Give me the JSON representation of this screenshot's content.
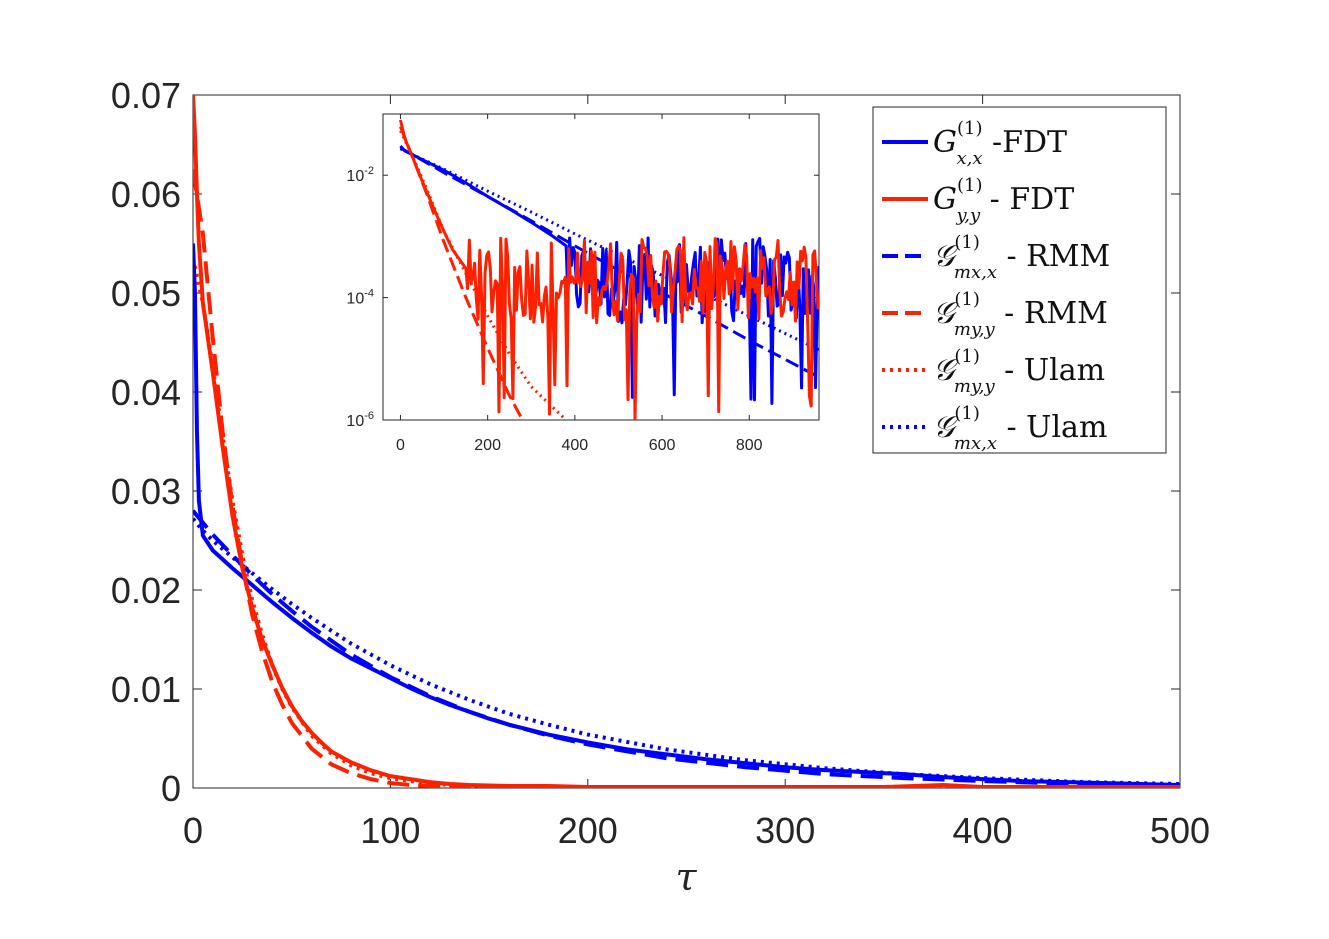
{
  "chart_data": [
    {
      "type": "line",
      "panel": "main",
      "xlabel": "τ",
      "ylabel": "",
      "xlim": [
        0,
        500
      ],
      "ylim": [
        0,
        0.07
      ],
      "x_ticks": [
        0,
        100,
        200,
        300,
        400,
        500
      ],
      "x_tick_labels": [
        "0",
        "100",
        "200",
        "300",
        "400",
        "500"
      ],
      "y_ticks": [
        0,
        0.01,
        0.02,
        0.03,
        0.04,
        0.05,
        0.06,
        0.07
      ],
      "y_tick_labels": [
        "0",
        "0.01",
        "0.02",
        "0.03",
        "0.04",
        "0.05",
        "0.06",
        "0.07"
      ],
      "series": [
        {
          "key": "gxx_fdt",
          "name": "G_{x,x}^{(1)} -FDT",
          "color": "#0000ff",
          "style": "solid",
          "x": [
            0,
            1,
            2,
            3,
            5,
            10,
            20,
            30,
            40,
            50,
            60,
            70,
            80,
            90,
            100,
            110,
            120,
            130,
            140,
            150,
            160,
            170,
            180,
            190,
            200,
            220,
            240,
            260,
            280,
            300,
            320,
            340,
            360,
            380,
            400,
            420,
            440,
            460,
            480,
            500
          ],
          "y": [
            0.055,
            0.05,
            0.036,
            0.029,
            0.0255,
            0.024,
            0.0222,
            0.0205,
            0.0188,
            0.0172,
            0.0157,
            0.0143,
            0.0131,
            0.0121,
            0.0111,
            0.0101,
            0.0092,
            0.0084,
            0.0077,
            0.007,
            0.0064,
            0.0059,
            0.0054,
            0.005,
            0.0046,
            0.0039,
            0.0034,
            0.0029,
            0.0025,
            0.0021,
            0.0018,
            0.0016,
            0.0014,
            0.0011,
            0.0009,
            0.0007,
            0.0006,
            0.0005,
            0.0004,
            0.0003
          ]
        },
        {
          "key": "gyy_fdt",
          "name": "G_{y,y}^{(1)} - FDT",
          "color": "#ff2000",
          "style": "solid",
          "x": [
            0,
            1,
            2,
            3,
            5,
            10,
            15,
            20,
            25,
            30,
            35,
            40,
            45,
            50,
            55,
            60,
            65,
            70,
            80,
            90,
            100,
            110,
            120,
            130,
            140,
            160,
            180,
            200,
            250,
            300,
            350,
            380,
            400,
            450,
            500
          ],
          "y": [
            0.07,
            0.066,
            0.06,
            0.055,
            0.049,
            0.042,
            0.0345,
            0.0275,
            0.0222,
            0.0182,
            0.015,
            0.0125,
            0.0102,
            0.0083,
            0.0068,
            0.0056,
            0.0046,
            0.0037,
            0.0026,
            0.0018,
            0.0012,
            0.0009,
            0.0006,
            0.0004,
            0.0003,
            0.0002,
            0.0002,
            0.0001,
            0.0001,
            0.0001,
            0.0001,
            0.0003,
            0.0001,
            0.0001,
            0.0001
          ]
        },
        {
          "key": "gmxx_rmm",
          "name": "𝒢_{m_x,x}^{(1)} - RMM",
          "color": "#0000ff",
          "style": "dashed",
          "x": [
            0,
            5,
            10,
            20,
            30,
            40,
            50,
            60,
            80,
            100,
            120,
            140,
            160,
            180,
            200,
            240,
            280,
            320,
            360,
            400,
            450,
            500
          ],
          "y": [
            0.028,
            0.0268,
            0.0256,
            0.0235,
            0.0215,
            0.0196,
            0.0179,
            0.0163,
            0.0135,
            0.0112,
            0.0093,
            0.0077,
            0.0064,
            0.0053,
            0.0044,
            0.003,
            0.0021,
            0.0014,
            0.001,
            0.0007,
            0.0004,
            0.0002
          ]
        },
        {
          "key": "gmyy_rmm",
          "name": "𝒢_{m_y,y}^{(1)} - RMM",
          "color": "#ff2000",
          "style": "dashed",
          "x": [
            0,
            5,
            10,
            15,
            20,
            25,
            30,
            35,
            40,
            45,
            50,
            60,
            70,
            80,
            90,
            100,
            110,
            120,
            130,
            150,
            180,
            220,
            260,
            300,
            400,
            500
          ],
          "y": [
            0.0625,
            0.056,
            0.0455,
            0.036,
            0.0285,
            0.0225,
            0.0175,
            0.0138,
            0.0108,
            0.0085,
            0.0066,
            0.004,
            0.0024,
            0.0015,
            0.0009,
            0.0005,
            0.0003,
            0.0002,
            0.0001,
            0.0001,
            0,
            0,
            0,
            0,
            0,
            0
          ]
        },
        {
          "key": "gmyy_ulam",
          "name": "𝒢_{m_y,y}^{(1)} - Ulam",
          "color": "#ff2000",
          "style": "dotted",
          "x": [
            0,
            5,
            10,
            15,
            20,
            25,
            30,
            35,
            40,
            45,
            50,
            60,
            70,
            80,
            90,
            100,
            110,
            120,
            130,
            150,
            180,
            220,
            260,
            300,
            400,
            500
          ],
          "y": [
            0.0535,
            0.049,
            0.0425,
            0.0355,
            0.029,
            0.0235,
            0.019,
            0.0155,
            0.0125,
            0.0101,
            0.0082,
            0.0053,
            0.0035,
            0.0023,
            0.0015,
            0.001,
            0.0007,
            0.0005,
            0.0003,
            0.0002,
            0.0001,
            0,
            0,
            0,
            0,
            0
          ]
        },
        {
          "key": "gmxx_ulam",
          "name": "𝒢_{m_x,x}^{(1)} - Ulam",
          "color": "#0000ff",
          "style": "dotted",
          "x": [
            0,
            5,
            10,
            20,
            30,
            40,
            50,
            60,
            80,
            100,
            120,
            140,
            160,
            180,
            200,
            240,
            280,
            320,
            360,
            400,
            450,
            500
          ],
          "y": [
            0.0272,
            0.026,
            0.025,
            0.0233,
            0.0217,
            0.0201,
            0.0186,
            0.0172,
            0.0146,
            0.0124,
            0.0105,
            0.0089,
            0.0075,
            0.0064,
            0.0054,
            0.0039,
            0.0028,
            0.002,
            0.0014,
            0.001,
            0.0006,
            0.0004
          ]
        }
      ],
      "legend": {
        "placement": "top-right",
        "entries": [
          {
            "series": "gxx_fdt",
            "symbol": "G",
            "sub": "x,x",
            "sup": "(1)",
            "suffix": " -FDT"
          },
          {
            "series": "gyy_fdt",
            "symbol": "G",
            "sub": "y,y",
            "sup": "(1)",
            "suffix": " - FDT"
          },
          {
            "series": "gmxx_rmm",
            "symbol": "𝒢",
            "sub": "mx,x",
            "sup": "(1)",
            "suffix": " - RMM"
          },
          {
            "series": "gmyy_rmm",
            "symbol": "𝒢",
            "sub": "my,y",
            "sup": "(1)",
            "suffix": " - RMM"
          },
          {
            "series": "gmyy_ulam",
            "symbol": "𝒢",
            "sub": "my,y",
            "sup": "(1)",
            "suffix": " - Ulam"
          },
          {
            "series": "gmxx_ulam",
            "symbol": "𝒢",
            "sub": "mx,x",
            "sup": "(1)",
            "suffix": " - Ulam"
          }
        ]
      }
    },
    {
      "type": "line",
      "panel": "inset",
      "yscale": "log",
      "xlim": [
        -40,
        960
      ],
      "ylim": [
        1e-06,
        0.1
      ],
      "x_ticks": [
        0,
        200,
        400,
        600,
        800
      ],
      "x_tick_labels": [
        "0",
        "200",
        "400",
        "600",
        "800"
      ],
      "y_ticks": [
        1e-06,
        0.0001,
        0.01
      ],
      "y_tick_labels": [
        {
          "base": "10",
          "exp": "-6"
        },
        {
          "base": "10",
          "exp": "-4"
        },
        {
          "base": "10",
          "exp": "-2"
        }
      ],
      "series": [
        {
          "key": "gxx_fdt",
          "color": "#0000ff",
          "style": "solid",
          "noisy_after": 380,
          "x": [
            0,
            10,
            50,
            100,
            150,
            200,
            250,
            300,
            350,
            380
          ],
          "y": [
            0.03,
            0.025,
            0.018,
            0.012,
            0.0075,
            0.0045,
            0.0028,
            0.0017,
            0.001,
            0.0007
          ]
        },
        {
          "key": "gyy_fdt",
          "color": "#ff2000",
          "style": "solid",
          "noisy_after": 150,
          "x": [
            0,
            10,
            30,
            50,
            80,
            100,
            120,
            150
          ],
          "y": [
            0.08,
            0.04,
            0.018,
            0.008,
            0.0025,
            0.0012,
            0.0006,
            0.0003
          ]
        },
        {
          "key": "gmxx_rmm",
          "color": "#0000ff",
          "style": "dashed",
          "x": [
            0,
            100,
            200,
            300,
            400,
            500,
            600,
            700,
            800,
            960
          ],
          "y": [
            0.028,
            0.011,
            0.0045,
            0.0018,
            0.0007,
            0.00028,
            0.00012,
            5e-05,
            2e-05,
            5e-06
          ]
        },
        {
          "key": "gmyy_rmm",
          "color": "#ff2000",
          "style": "dashed",
          "x": [
            0,
            30,
            60,
            100,
            150,
            200,
            250,
            280
          ],
          "y": [
            0.062,
            0.018,
            0.005,
            0.0008,
            0.0001,
            1.5e-05,
            2.5e-06,
            1e-06
          ]
        },
        {
          "key": "gmyy_ulam",
          "color": "#ff2000",
          "style": "dotted",
          "x": [
            0,
            30,
            60,
            100,
            150,
            200,
            250,
            300,
            380
          ],
          "y": [
            0.053,
            0.019,
            0.006,
            0.0012,
            0.00025,
            5e-05,
            1.2e-05,
            3.5e-06,
            1e-06
          ]
        },
        {
          "key": "gmxx_ulam",
          "color": "#0000ff",
          "style": "dotted",
          "x": [
            0,
            100,
            200,
            300,
            400,
            500,
            600,
            700,
            800,
            960
          ],
          "y": [
            0.027,
            0.0125,
            0.0055,
            0.0025,
            0.0011,
            0.0005,
            0.00023,
            0.00011,
            5e-05,
            1.4e-05
          ]
        }
      ]
    }
  ]
}
